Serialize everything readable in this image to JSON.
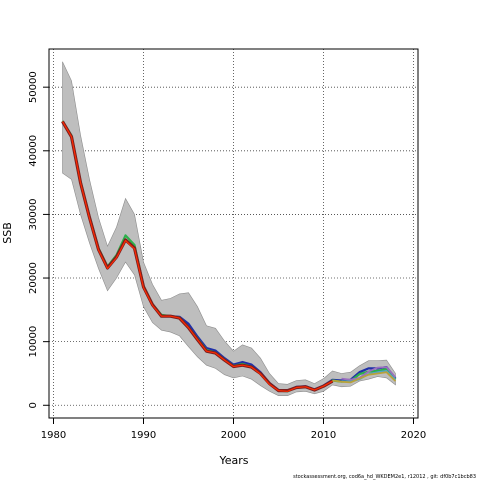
{
  "chart_data": {
    "type": "line",
    "xlabel": "Years",
    "ylabel": "SSB",
    "xlim": [
      1979.5,
      2020.5
    ],
    "ylim": [
      -2000,
      56000
    ],
    "x_ticks": [
      1980,
      1990,
      2000,
      2010,
      2020
    ],
    "y_ticks": [
      0,
      10000,
      20000,
      30000,
      40000,
      50000
    ],
    "x_tick_labels": [
      "1980",
      "1990",
      "2000",
      "2010",
      "2020"
    ],
    "y_tick_labels": [
      "0",
      "10000",
      "20000",
      "30000",
      "40000",
      "50000"
    ],
    "grid": true,
    "footer": "stockassessment.org, cod6a_hd_WKDEM2e1, r12012 , git: df0b7c1bcb83",
    "colors": {
      "band": "#bebebe",
      "band_edge": "#8c8c8c",
      "grid": "#404040"
    },
    "band": {
      "x": [
        1981,
        1982,
        1983,
        1984,
        1985,
        1986,
        1987,
        1988,
        1989,
        1990,
        1991,
        1992,
        1993,
        1994,
        1995,
        1996,
        1997,
        1998,
        1999,
        2000,
        2001,
        2002,
        2003,
        2004,
        2005,
        2006,
        2007,
        2008,
        2009,
        2010,
        2011,
        2012,
        2013,
        2014,
        2015,
        2016,
        2017,
        2018
      ],
      "lower": [
        36500,
        35500,
        30000,
        25500,
        21500,
        18000,
        20000,
        22500,
        20500,
        15500,
        13000,
        11800,
        11500,
        10900,
        9200,
        7600,
        6300,
        5800,
        4800,
        4300,
        4600,
        4100,
        3100,
        2200,
        1500,
        1500,
        2100,
        2200,
        1800,
        2200,
        3200,
        2900,
        3000,
        3800,
        4100,
        4500,
        4300,
        3200
      ],
      "upper": [
        54000,
        51000,
        42500,
        35500,
        29500,
        25000,
        28000,
        32500,
        30000,
        22500,
        19000,
        16500,
        16800,
        17500,
        17700,
        15500,
        12500,
        12100,
        10100,
        8500,
        9500,
        9000,
        7400,
        5000,
        3400,
        3300,
        3900,
        4000,
        3400,
        4200,
        5400,
        5000,
        5200,
        6200,
        7000,
        7000,
        7100,
        5000
      ]
    },
    "series": [
      {
        "color": "#1f2fa8",
        "x": [
          1981,
          1982,
          1983,
          1984,
          1985,
          1986,
          1987,
          1988,
          1989,
          1990,
          1991,
          1992,
          1993,
          1994,
          1995,
          1996,
          1997,
          1998,
          1999,
          2000,
          2001,
          2002,
          2003,
          2004,
          2005,
          2006,
          2007,
          2008,
          2009,
          2010,
          2011,
          2012,
          2013,
          2014,
          2015,
          2016,
          2017,
          2018
        ],
        "values": [
          44500,
          42300,
          35000,
          29500,
          24500,
          21500,
          23200,
          26000,
          24800,
          18500,
          15700,
          14000,
          14000,
          13900,
          12800,
          10800,
          9000,
          8600,
          7400,
          6400,
          6800,
          6400,
          5200,
          3500,
          2400,
          2300,
          2900,
          3000,
          2500,
          3100,
          4000,
          3900,
          4000,
          5200,
          5800,
          5800,
          6000,
          4200
        ]
      },
      {
        "color": "#2db04b",
        "x": [
          1981,
          1982,
          1983,
          1984,
          1985,
          1986,
          1987,
          1988,
          1989,
          1990,
          1991,
          1992,
          1993,
          1994,
          1995,
          1996,
          1997,
          1998,
          1999,
          2000,
          2001,
          2002,
          2003,
          2004,
          2005,
          2006,
          2007,
          2008,
          2009,
          2010,
          2011,
          2012,
          2013,
          2014,
          2015,
          2016,
          2017,
          2018
        ],
        "values": [
          44700,
          42400,
          35200,
          29700,
          24700,
          21800,
          23600,
          26700,
          25200,
          18800,
          15900,
          14200,
          14000,
          13800,
          12300,
          10500,
          8700,
          8300,
          7200,
          6200,
          6500,
          6100,
          5000,
          3400,
          2300,
          2200,
          2800,
          2900,
          2400,
          3000,
          3900,
          3700,
          3800,
          4900,
          5300,
          5400,
          5700,
          4100
        ]
      },
      {
        "color": "#9b6fbe",
        "x": [
          2012,
          2013,
          2014,
          2015,
          2016,
          2017,
          2018
        ],
        "values": [
          4200,
          4000,
          4300,
          5300,
          5900,
          6000,
          4400
        ]
      },
      {
        "color": "#4ea3c9",
        "x": [
          2012,
          2013,
          2014,
          2015,
          2016,
          2017,
          2018
        ],
        "values": [
          3800,
          3700,
          4100,
          4900,
          5200,
          5400,
          4000
        ]
      },
      {
        "color": "#b9a23a",
        "x": [
          2011,
          2012,
          2013,
          2014,
          2015,
          2016,
          2017,
          2018
        ],
        "values": [
          3900,
          3700,
          3600,
          4200,
          4800,
          5000,
          5200,
          3800
        ]
      },
      {
        "color": "#7a1f1f",
        "x": [
          1981,
          1982,
          1983,
          1984,
          1985,
          1986,
          1987,
          1988,
          1989,
          1990,
          1991,
          1992,
          1993,
          1994,
          1995,
          1996,
          1997,
          1998,
          1999,
          2000,
          2001,
          2002,
          2003,
          2004,
          2005,
          2006,
          2007,
          2008,
          2009,
          2010,
          2011
        ],
        "values": [
          44600,
          42200,
          35000,
          29500,
          24500,
          21600,
          23300,
          26000,
          24700,
          18600,
          15800,
          14000,
          14000,
          13700,
          12200,
          10300,
          8500,
          8200,
          7100,
          6100,
          6300,
          6000,
          5000,
          3400,
          2300,
          2300,
          2800,
          2900,
          2400,
          3000,
          3800
        ]
      },
      {
        "color": "#ff2a00",
        "x": [
          1981,
          1982,
          1983,
          1984,
          1985,
          1986,
          1987,
          1988,
          1989,
          1990,
          1991,
          1992,
          1993,
          1994,
          1995,
          1996,
          1997,
          1998,
          1999,
          2000,
          2001,
          2002,
          2003,
          2004,
          2005,
          2006,
          2007,
          2008,
          2009,
          2010,
          2011
        ],
        "values": [
          44600,
          42200,
          35000,
          29400,
          24400,
          21500,
          23200,
          25900,
          24600,
          18500,
          15700,
          14000,
          14000,
          13700,
          12200,
          10300,
          8500,
          8200,
          7100,
          6100,
          6300,
          6000,
          4900,
          3300,
          2300,
          2200,
          2800,
          2900,
          2400,
          3000,
          3800
        ]
      }
    ]
  }
}
